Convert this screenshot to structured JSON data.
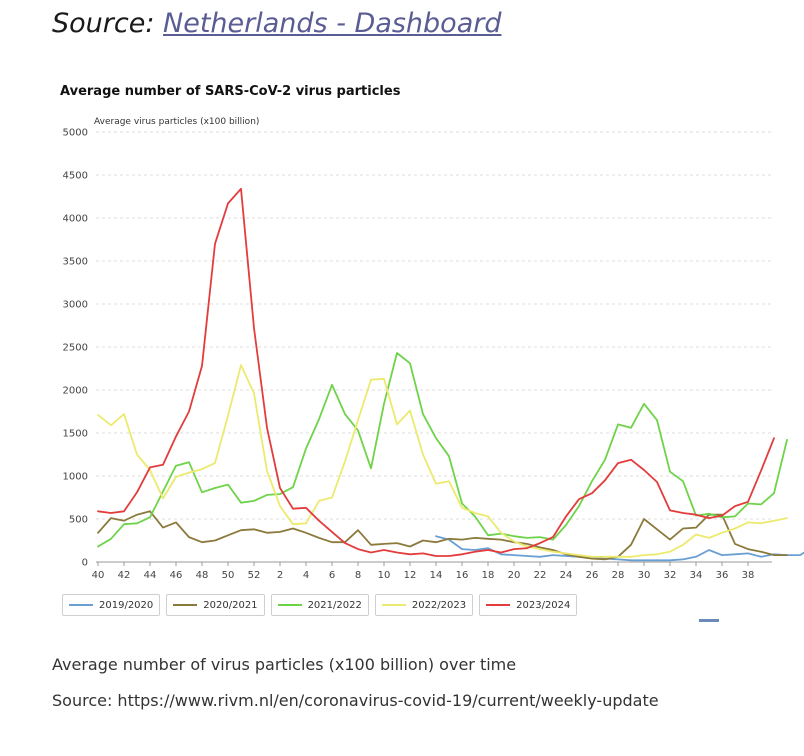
{
  "header": {
    "source_label": "Source:",
    "source_link": "Netherlands - Dashboard"
  },
  "captions": {
    "line1": "Average number of virus particles (x100 billion) over time",
    "line2": "Source: https://www.rivm.nl/en/coronavirus-covid-19/current/weekly-update"
  },
  "chart_data": {
    "type": "line",
    "title": "Average number of SARS-CoV-2 virus particles",
    "ylabel": "Average virus particles (x100 billion)",
    "xlabel": "",
    "ylim": [
      0,
      5000
    ],
    "yticks": [
      0,
      500,
      1000,
      1500,
      2000,
      2500,
      3000,
      3500,
      4000,
      4500,
      5000
    ],
    "x_tick_labels": [
      "40",
      "42",
      "44",
      "46",
      "48",
      "50",
      "52",
      "2",
      "4",
      "6",
      "8",
      "10",
      "12",
      "14",
      "16",
      "18",
      "20",
      "22",
      "24",
      "26",
      "28",
      "30",
      "32",
      "34",
      "36",
      "38"
    ],
    "x_points": 52,
    "grid": true,
    "legend_position": "bottom-left",
    "series": [
      {
        "name": "2019/2020",
        "color": "#6a9fd4",
        "start_index": 26,
        "values": [
          300,
          260,
          150,
          140,
          160,
          90,
          80,
          70,
          60,
          80,
          70,
          60,
          50,
          40,
          30,
          20,
          20,
          20,
          20,
          30,
          60,
          140,
          80,
          90,
          100,
          60,
          90,
          80,
          80,
          170
        ]
      },
      {
        "name": "2020/2021",
        "color": "#8b7a3c",
        "start_index": 0,
        "values": [
          340,
          510,
          480,
          550,
          590,
          400,
          460,
          290,
          230,
          250,
          310,
          370,
          380,
          340,
          350,
          390,
          340,
          280,
          230,
          230,
          370,
          200,
          210,
          220,
          180,
          250,
          230,
          270,
          260,
          280,
          270,
          260,
          230,
          210,
          170,
          140,
          90,
          60,
          40,
          30,
          60,
          200,
          500,
          380,
          260,
          390,
          400,
          550,
          550,
          210,
          150,
          120,
          80,
          80
        ]
      },
      {
        "name": "2021/2022",
        "color": "#6fd34a",
        "start_index": 0,
        "values": [
          180,
          270,
          440,
          450,
          520,
          820,
          1120,
          1160,
          810,
          860,
          900,
          690,
          710,
          780,
          790,
          870,
          1320,
          1660,
          2060,
          1720,
          1530,
          1090,
          1840,
          2430,
          2310,
          1720,
          1440,
          1230,
          680,
          530,
          310,
          330,
          300,
          280,
          290,
          260,
          430,
          650,
          940,
          1190,
          1600,
          1560,
          1840,
          1650,
          1050,
          940,
          540,
          560,
          520,
          530,
          680,
          670,
          800,
          1420
        ]
      },
      {
        "name": "2022/2023",
        "color": "#ecea6e",
        "start_index": 0,
        "values": [
          1710,
          1590,
          1720,
          1250,
          1070,
          740,
          990,
          1040,
          1080,
          1150,
          1700,
          2290,
          1960,
          1060,
          650,
          440,
          450,
          710,
          750,
          1170,
          1650,
          2120,
          2130,
          1600,
          1760,
          1250,
          910,
          940,
          630,
          570,
          530,
          340,
          240,
          180,
          150,
          120,
          100,
          80,
          60,
          60,
          60,
          60,
          80,
          90,
          120,
          200,
          320,
          280,
          340,
          390,
          460,
          450,
          480,
          510
        ]
      },
      {
        "name": "2023/2024",
        "color": "#e23c3c",
        "start_index": 0,
        "values": [
          590,
          570,
          590,
          810,
          1100,
          1130,
          1460,
          1750,
          2280,
          3700,
          4170,
          4340,
          2720,
          1560,
          860,
          620,
          630,
          480,
          350,
          220,
          150,
          110,
          140,
          110,
          90,
          100,
          70,
          70,
          90,
          120,
          140,
          110,
          150,
          160,
          220,
          290,
          530,
          730,
          800,
          950,
          1150,
          1190,
          1070,
          930,
          600,
          570,
          550,
          510,
          540,
          650,
          700,
          1060,
          1440
        ]
      }
    ]
  }
}
